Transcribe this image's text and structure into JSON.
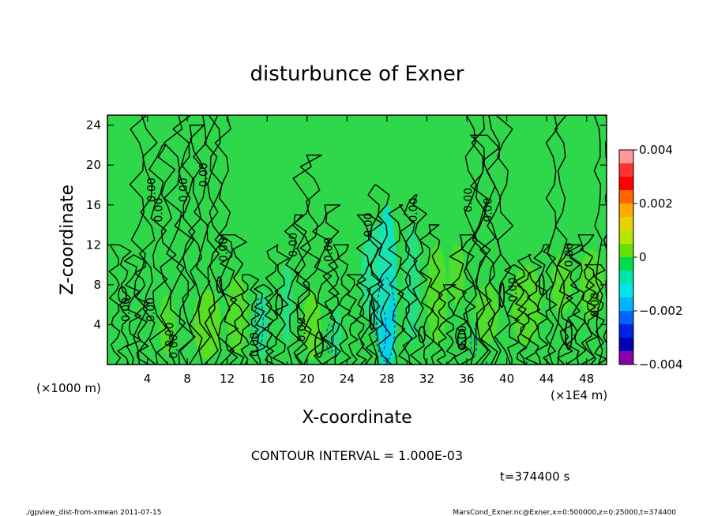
{
  "chart_data": {
    "type": "heatmap",
    "title": "disturbunce of Exner",
    "xlabel": "X-coordinate",
    "ylabel": "Z-coordinate",
    "x_unit": "(×1E4 m)",
    "z_unit": "(×1000 m)",
    "x_range": [
      0,
      50
    ],
    "y_range": [
      0,
      25
    ],
    "x_ticks": [
      4,
      8,
      12,
      16,
      20,
      24,
      28,
      32,
      36,
      40,
      44,
      48
    ],
    "y_ticks": [
      4,
      8,
      12,
      16,
      20,
      24
    ],
    "colorbar": {
      "range": [
        -0.004,
        0.004
      ],
      "levels": 16,
      "tick_labels": [
        "0.004",
        "0.002",
        "0",
        "−0.002",
        "−0.004"
      ],
      "tick_values": [
        0.004,
        0.002,
        0,
        -0.002,
        -0.004
      ],
      "colors": [
        "#ff9999",
        "#ff3333",
        "#ff0000",
        "#ff6600",
        "#ffaa00",
        "#e6d200",
        "#b4e600",
        "#66e000",
        "#00dc4a",
        "#00e6aa",
        "#00e6e6",
        "#00b4ff",
        "#0066ff",
        "#0022e6",
        "#0000b4",
        "#8800aa"
      ]
    },
    "background_color": "#2fd84a",
    "contour_interval_text": "CONTOUR INTERVAL = 1.000E-03",
    "contour_labels": [
      {
        "text": "0.00",
        "x": 2.2,
        "y": 5.5
      },
      {
        "text": "0.00",
        "x": 4.8,
        "y": 17.5
      },
      {
        "text": "0.00",
        "x": 5.5,
        "y": 15.5
      },
      {
        "text": "0.00",
        "x": 4.7,
        "y": 5.5
      },
      {
        "text": "0.00",
        "x": 6.6,
        "y": 3.0
      },
      {
        "text": "0.00",
        "x": 7.0,
        "y": 1.8
      },
      {
        "text": "0.00",
        "x": 8.0,
        "y": 17.5
      },
      {
        "text": "0.00",
        "x": 10.0,
        "y": 19.0
      },
      {
        "text": "0.00",
        "x": 12.0,
        "y": 11.5
      },
      {
        "text": "0.00",
        "x": 15.1,
        "y": 2.0
      },
      {
        "text": "0.00",
        "x": 19.0,
        "y": 12.0
      },
      {
        "text": "0.00",
        "x": 19.8,
        "y": 3.5
      },
      {
        "text": "0.00",
        "x": 22.5,
        "y": 11.5
      },
      {
        "text": "0.00",
        "x": 26.5,
        "y": 14.0
      },
      {
        "text": "0.00",
        "x": 31.0,
        "y": 15.5
      },
      {
        "text": "0.00",
        "x": 36.5,
        "y": 16.5
      },
      {
        "text": "0.00",
        "x": 38.5,
        "y": 15.5
      },
      {
        "text": "0.00",
        "x": 35.9,
        "y": 2.7
      },
      {
        "text": "0.00",
        "x": 41.0,
        "y": 7.5
      },
      {
        "text": "0.00",
        "x": 46.6,
        "y": 11.0
      },
      {
        "text": "0.00",
        "x": 49.2,
        "y": 6.0
      }
    ],
    "time_label": "t=374400 s"
  },
  "footer": {
    "left": "./gpview_dist-from-xmean  2011-07-15",
    "right": "MarsCond_Exner.nc@Exner,x=0:500000,z=0:25000,t=374400"
  },
  "colors": {
    "axis": "#000000",
    "contour": "#000000"
  }
}
